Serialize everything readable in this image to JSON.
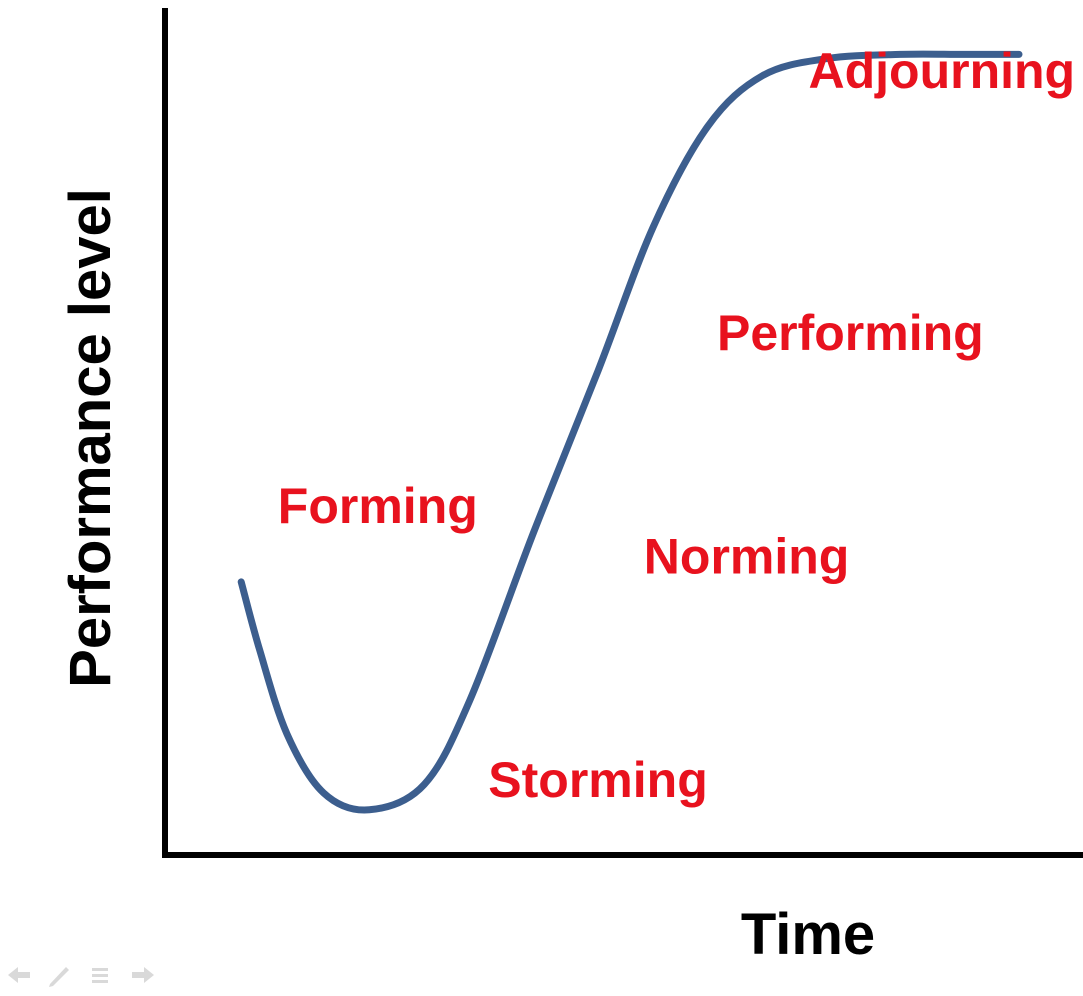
{
  "chart_data": {
    "type": "line",
    "title": "",
    "xlabel": "Time",
    "ylabel": "Performance level",
    "xlim": [
      0,
      100
    ],
    "ylim": [
      0,
      100
    ],
    "grid": false,
    "series": [
      {
        "color": "#3c5e8e",
        "points": [
          [
            8,
            32
          ],
          [
            10,
            24
          ],
          [
            13,
            14
          ],
          [
            17,
            7
          ],
          [
            22,
            5
          ],
          [
            28,
            8
          ],
          [
            33,
            18
          ],
          [
            40,
            38
          ],
          [
            47,
            57
          ],
          [
            53,
            74
          ],
          [
            59,
            86
          ],
          [
            65,
            92
          ],
          [
            72,
            94
          ],
          [
            80,
            94.5
          ],
          [
            87,
            94.5
          ],
          [
            93,
            94.5
          ]
        ]
      }
    ],
    "annotations": [
      {
        "text": "Forming",
        "x": 12,
        "y": 39
      },
      {
        "text": "Storming",
        "x": 35,
        "y": 6.5
      },
      {
        "text": "Norming",
        "x": 52,
        "y": 33
      },
      {
        "text": "Performing",
        "x": 60,
        "y": 59.5
      },
      {
        "text": "Adjourning",
        "x": 70,
        "y": 90.5
      }
    ],
    "label_color": "#e8121e"
  },
  "nav": {
    "icons": [
      "back-arrow-icon",
      "pen-icon",
      "menu-icon",
      "forward-arrow-icon"
    ]
  }
}
